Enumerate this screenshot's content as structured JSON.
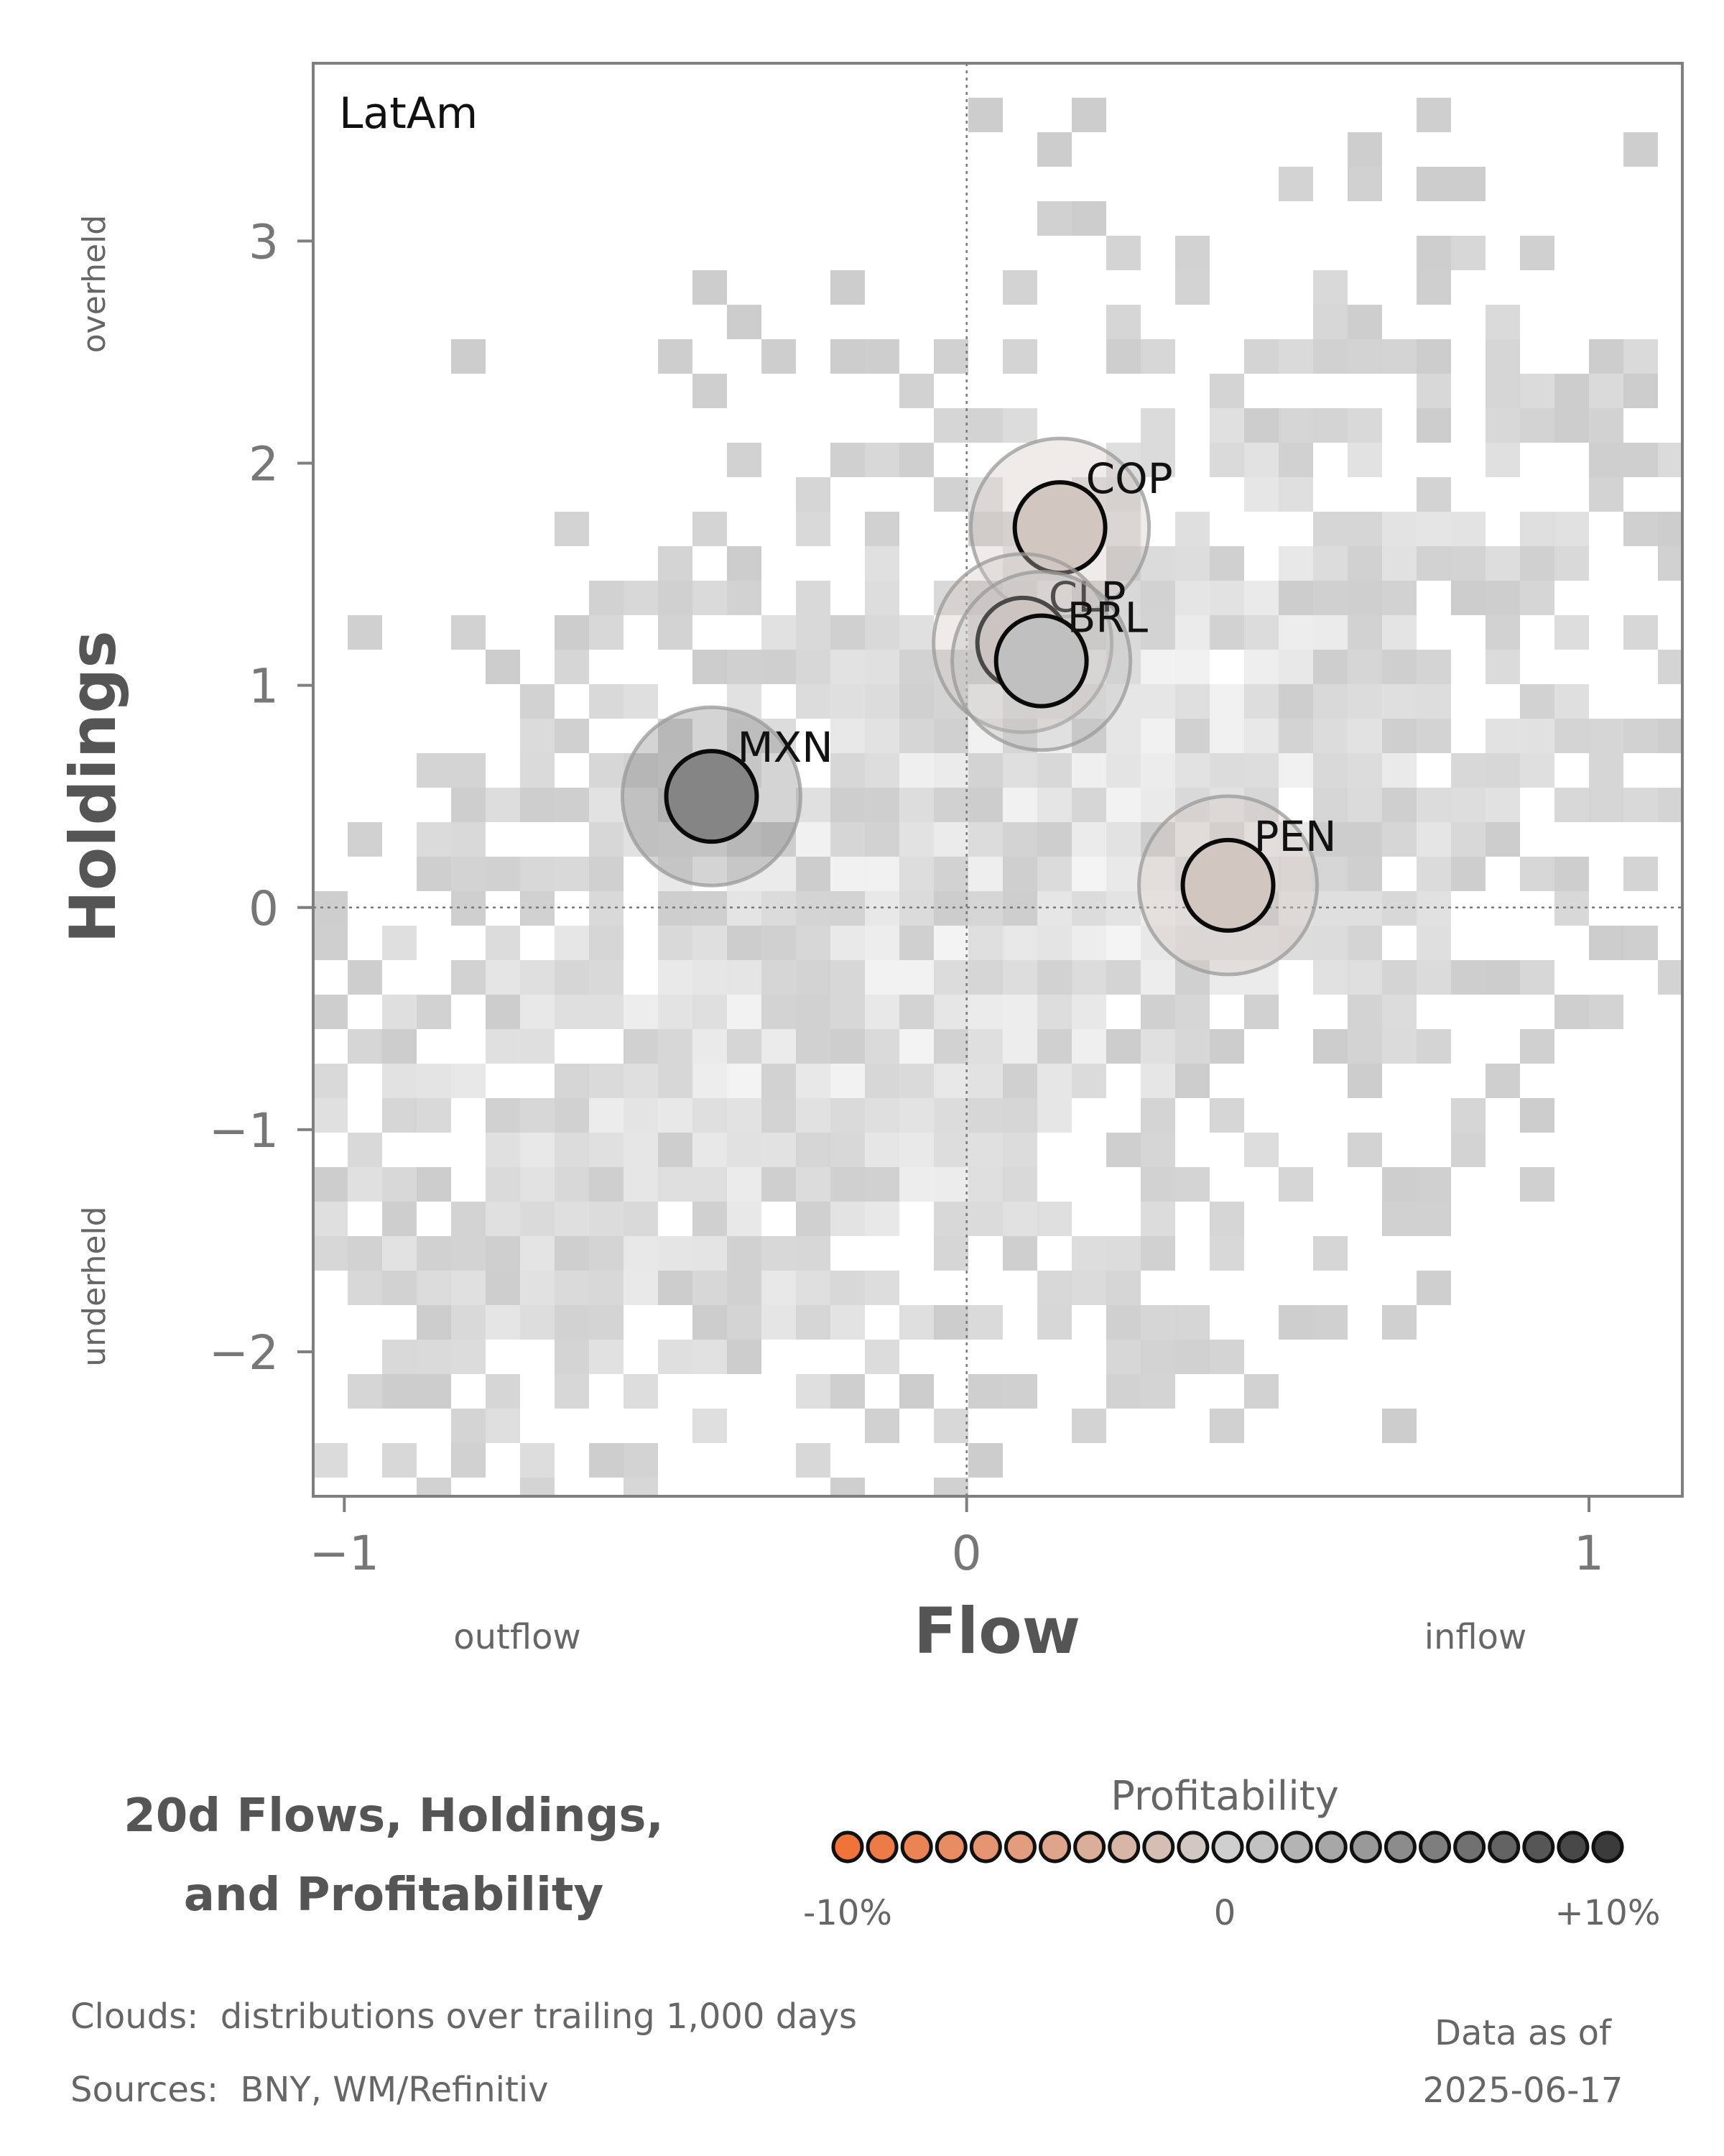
{
  "chart_data": {
    "type": "scatter",
    "panel_label": "LatAm",
    "xlabel": "Flow",
    "ylabel": "Holdings",
    "x_hint_left": "outflow",
    "x_hint_right": "inflow",
    "y_hint_top": "overheld",
    "y_hint_bottom": "underheld",
    "xlim": [
      -1.05,
      1.15
    ],
    "ylim": [
      -2.65,
      3.8
    ],
    "x_ticks": [
      -1,
      0,
      1
    ],
    "x_tick_labels": [
      "−1",
      "0",
      "1"
    ],
    "y_ticks": [
      -2,
      -1,
      0,
      1,
      2,
      3
    ],
    "y_tick_labels": [
      "−2",
      "−1",
      "0",
      "1",
      "2",
      "3"
    ],
    "grid": false,
    "reference_lines": {
      "x": 0,
      "y": 0
    },
    "points": [
      {
        "label": "COP",
        "x": 0.15,
        "y": 1.71,
        "profitability": -0.01
      },
      {
        "label": "CLP",
        "x": 0.09,
        "y": 1.19,
        "profitability": -0.01
      },
      {
        "label": "BRL",
        "x": 0.12,
        "y": 1.11,
        "profitability": 0.01
      },
      {
        "label": "MXN",
        "x": -0.41,
        "y": 0.5,
        "profitability": 0.05
      },
      {
        "label": "PEN",
        "x": 0.42,
        "y": 0.1,
        "profitability": -0.01
      }
    ],
    "colors": {
      "negative": "#f0733a",
      "neutral": "#cfcfcf",
      "positive": "#3b3b3b",
      "cloud": "#cfcfcf",
      "axis": "#7f7f7f",
      "text": "#555555"
    }
  },
  "legend": {
    "title_line1": "20d Flows, Holdings,",
    "title_line2": "and Profitability",
    "colorbar_title": "Profitability",
    "tick_min": "-10%",
    "tick_mid": "0",
    "tick_max": "+10%"
  },
  "footer": {
    "clouds_note": "Clouds:  distributions over trailing 1,000 days",
    "sources_note": "Sources:  BNY, WM/Refinitiv",
    "data_as_of_label": "Data as of",
    "data_as_of_date": "2025-06-17"
  }
}
